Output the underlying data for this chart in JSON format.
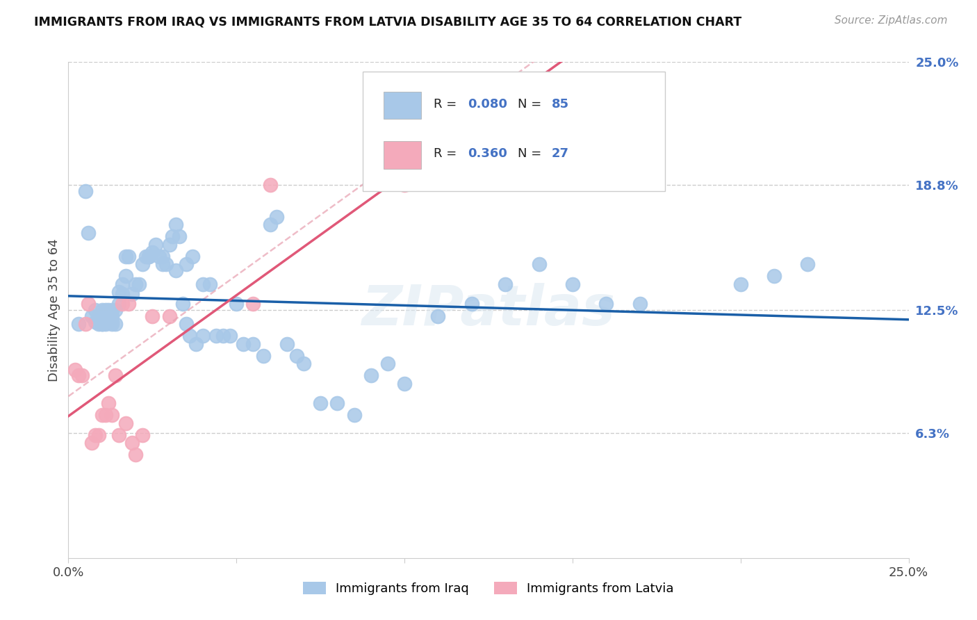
{
  "title": "IMMIGRANTS FROM IRAQ VS IMMIGRANTS FROM LATVIA DISABILITY AGE 35 TO 64 CORRELATION CHART",
  "source": "Source: ZipAtlas.com",
  "ylabel": "Disability Age 35 to 64",
  "xlim": [
    0.0,
    0.25
  ],
  "ylim": [
    0.0,
    0.25
  ],
  "x_tick_pos": [
    0.0,
    0.05,
    0.1,
    0.15,
    0.2,
    0.25
  ],
  "x_tick_labels": [
    "0.0%",
    "",
    "",
    "",
    "",
    "25.0%"
  ],
  "y_tick_labels_right": [
    "6.3%",
    "12.5%",
    "18.8%",
    "25.0%"
  ],
  "y_tick_positions_right": [
    0.063,
    0.125,
    0.188,
    0.25
  ],
  "iraq_R": 0.08,
  "iraq_N": 85,
  "latvia_R": 0.36,
  "latvia_N": 27,
  "iraq_color": "#a8c8e8",
  "latvia_color": "#f4aabb",
  "iraq_line_color": "#1a5fa8",
  "latvia_line_color": "#e05878",
  "diagonal_line_color": "#e8a0b0",
  "background_color": "#ffffff",
  "grid_color": "#cccccc",
  "iraq_x": [
    0.003,
    0.005,
    0.006,
    0.007,
    0.008,
    0.008,
    0.009,
    0.009,
    0.01,
    0.01,
    0.01,
    0.01,
    0.011,
    0.011,
    0.011,
    0.012,
    0.012,
    0.013,
    0.013,
    0.013,
    0.013,
    0.014,
    0.014,
    0.015,
    0.015,
    0.016,
    0.016,
    0.017,
    0.017,
    0.018,
    0.019,
    0.02,
    0.021,
    0.022,
    0.023,
    0.024,
    0.025,
    0.026,
    0.027,
    0.028,
    0.029,
    0.03,
    0.031,
    0.032,
    0.033,
    0.034,
    0.035,
    0.036,
    0.038,
    0.04,
    0.042,
    0.044,
    0.046,
    0.048,
    0.05,
    0.052,
    0.055,
    0.058,
    0.06,
    0.062,
    0.065,
    0.068,
    0.07,
    0.075,
    0.08,
    0.085,
    0.09,
    0.095,
    0.1,
    0.11,
    0.12,
    0.13,
    0.14,
    0.15,
    0.16,
    0.17,
    0.2,
    0.21,
    0.22,
    0.024,
    0.028,
    0.032,
    0.035,
    0.037,
    0.04
  ],
  "iraq_y": [
    0.118,
    0.185,
    0.164,
    0.122,
    0.125,
    0.119,
    0.122,
    0.118,
    0.122,
    0.118,
    0.125,
    0.118,
    0.12,
    0.125,
    0.118,
    0.119,
    0.125,
    0.122,
    0.125,
    0.118,
    0.119,
    0.125,
    0.118,
    0.128,
    0.134,
    0.138,
    0.133,
    0.142,
    0.152,
    0.152,
    0.133,
    0.138,
    0.138,
    0.148,
    0.152,
    0.152,
    0.154,
    0.158,
    0.152,
    0.152,
    0.148,
    0.158,
    0.162,
    0.168,
    0.162,
    0.128,
    0.118,
    0.112,
    0.108,
    0.112,
    0.138,
    0.112,
    0.112,
    0.112,
    0.128,
    0.108,
    0.108,
    0.102,
    0.168,
    0.172,
    0.108,
    0.102,
    0.098,
    0.078,
    0.078,
    0.072,
    0.092,
    0.098,
    0.088,
    0.122,
    0.128,
    0.138,
    0.148,
    0.138,
    0.128,
    0.128,
    0.138,
    0.142,
    0.148,
    0.152,
    0.148,
    0.145,
    0.148,
    0.152,
    0.138
  ],
  "latvia_x": [
    0.002,
    0.003,
    0.004,
    0.005,
    0.006,
    0.007,
    0.008,
    0.009,
    0.01,
    0.011,
    0.012,
    0.013,
    0.014,
    0.015,
    0.016,
    0.017,
    0.018,
    0.019,
    0.02,
    0.022,
    0.025,
    0.03,
    0.055,
    0.06,
    0.1,
    0.105,
    0.11
  ],
  "latvia_y": [
    0.095,
    0.092,
    0.092,
    0.118,
    0.128,
    0.058,
    0.062,
    0.062,
    0.072,
    0.072,
    0.078,
    0.072,
    0.092,
    0.062,
    0.128,
    0.068,
    0.128,
    0.058,
    0.052,
    0.062,
    0.122,
    0.122,
    0.128,
    0.188,
    0.188,
    0.192,
    0.212
  ]
}
